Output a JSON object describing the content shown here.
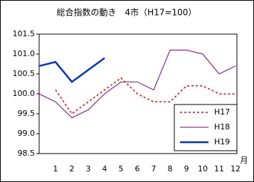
{
  "chart_data": {
    "type": "line",
    "title": "総合指数の動き　4市（H17=100）",
    "x_label": "月",
    "categories": [
      null,
      "1",
      "2",
      "3",
      "4",
      "5",
      "6",
      "7",
      "8",
      "9",
      "10",
      "11",
      "12"
    ],
    "ylim": [
      98.5,
      101.5
    ],
    "yticks": [
      98.5,
      {
        "value": 99,
        "label": "99.0"
      },
      99.5,
      {
        "value": 100,
        "label": "100.0"
      },
      100.5,
      {
        "value": 101,
        "label": "101.0"
      },
      101.5
    ],
    "legend": "lower right",
    "series": [
      {
        "name": "H17",
        "color": "#ff0000",
        "style": "dotted",
        "values": [
          null,
          100.1,
          99.5,
          99.8,
          100.1,
          100.4,
          100.0,
          99.8,
          99.8,
          100.2,
          100.2,
          100.0,
          100.0
        ]
      },
      {
        "name": "H18",
        "color": "#800080",
        "style": "solid",
        "values": [
          100.0,
          99.8,
          99.4,
          99.6,
          100.0,
          100.3,
          100.3,
          100.1,
          101.1,
          101.1,
          101.0,
          100.5,
          100.7
        ]
      },
      {
        "name": "H19",
        "color": "#0033cc",
        "style": "thick",
        "values": [
          100.7,
          100.8,
          100.3,
          100.6,
          100.9,
          null,
          null,
          null,
          null,
          null,
          null,
          null,
          null
        ]
      }
    ]
  }
}
